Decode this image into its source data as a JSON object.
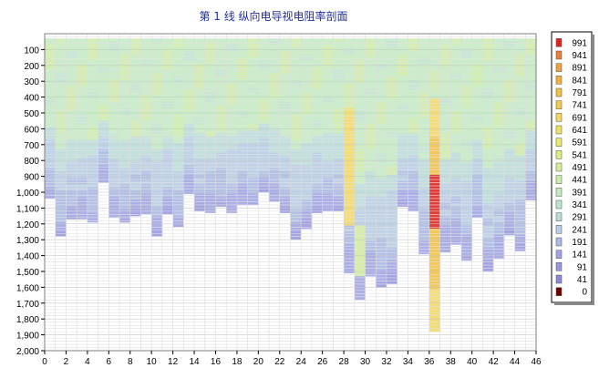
{
  "chart_data": {
    "type": "heatmap",
    "title": "第 1 线 纵向电导视电阻率剖面",
    "xlabel": "",
    "ylabel": "",
    "xlim": [
      0,
      46
    ],
    "ylim": [
      2000,
      0
    ],
    "x_ticks": [
      "0",
      "2",
      "4",
      "6",
      "8",
      "10",
      "12",
      "14",
      "16",
      "18",
      "20",
      "22",
      "24",
      "26",
      "28",
      "30",
      "32",
      "34",
      "36",
      "38",
      "40",
      "42",
      "44",
      "46"
    ],
    "y_ticks": [
      "100",
      "200",
      "300",
      "400",
      "500",
      "600",
      "700",
      "800",
      "900",
      "1,000",
      "1,100",
      "1,200",
      "1,300",
      "1,400",
      "1,500",
      "1,600",
      "1,700",
      "1,800",
      "1,900",
      "2,000"
    ],
    "grid": true,
    "cell_depth_step": 20,
    "legend": {
      "position": "right",
      "labels": [
        "991",
        "941",
        "891",
        "841",
        "791",
        "741",
        "691",
        "641",
        "591",
        "541",
        "491",
        "441",
        "391",
        "341",
        "291",
        "241",
        "191",
        "141",
        "91",
        "41",
        "0"
      ],
      "colors": [
        "#e0201c",
        "#e8803a",
        "#eea040",
        "#f0b040",
        "#f2c040",
        "#f2cc48",
        "#f2d860",
        "#eee060",
        "#e6ea6c",
        "#dcec80",
        "#d2ec98",
        "#cdeca8",
        "#c2eac0",
        "#bee4cc",
        "#b8dcd8",
        "#b6cce4",
        "#aab8e4",
        "#a0a4e4",
        "#9898e0",
        "#8888d8",
        "#700000"
      ]
    },
    "bottom_depth": [
      1040,
      1280,
      1170,
      1170,
      1190,
      940,
      1160,
      1190,
      1150,
      1140,
      1280,
      1140,
      1220,
      1010,
      1120,
      1130,
      1090,
      1130,
      1080,
      1080,
      1000,
      1060,
      1130,
      1300,
      1230,
      1130,
      1120,
      1120,
      1510,
      1680,
      1530,
      1600,
      1580,
      1090,
      1120,
      1390,
      1880,
      1380,
      1330,
      1430,
      1160,
      1500,
      1420,
      1270,
      1370,
      1050
    ],
    "top_depth": 30,
    "anomalies": [
      {
        "x": [
          28,
          29
        ],
        "from": 470,
        "to": 1200,
        "value": 700
      },
      {
        "x": [
          29,
          30
        ],
        "from": 1200,
        "to": 1530,
        "value": 520
      },
      {
        "x": [
          36,
          37
        ],
        "from": 400,
        "to": 640,
        "value": 700
      },
      {
        "x": [
          36,
          37
        ],
        "from": 640,
        "to": 880,
        "value": 800
      },
      {
        "x": [
          36,
          37
        ],
        "from": 880,
        "to": 1220,
        "value": 991
      },
      {
        "x": [
          36,
          37
        ],
        "from": 1220,
        "to": 1600,
        "value": 800
      },
      {
        "x": [
          36,
          37
        ],
        "from": 1600,
        "to": 1880,
        "value": 700
      }
    ]
  }
}
